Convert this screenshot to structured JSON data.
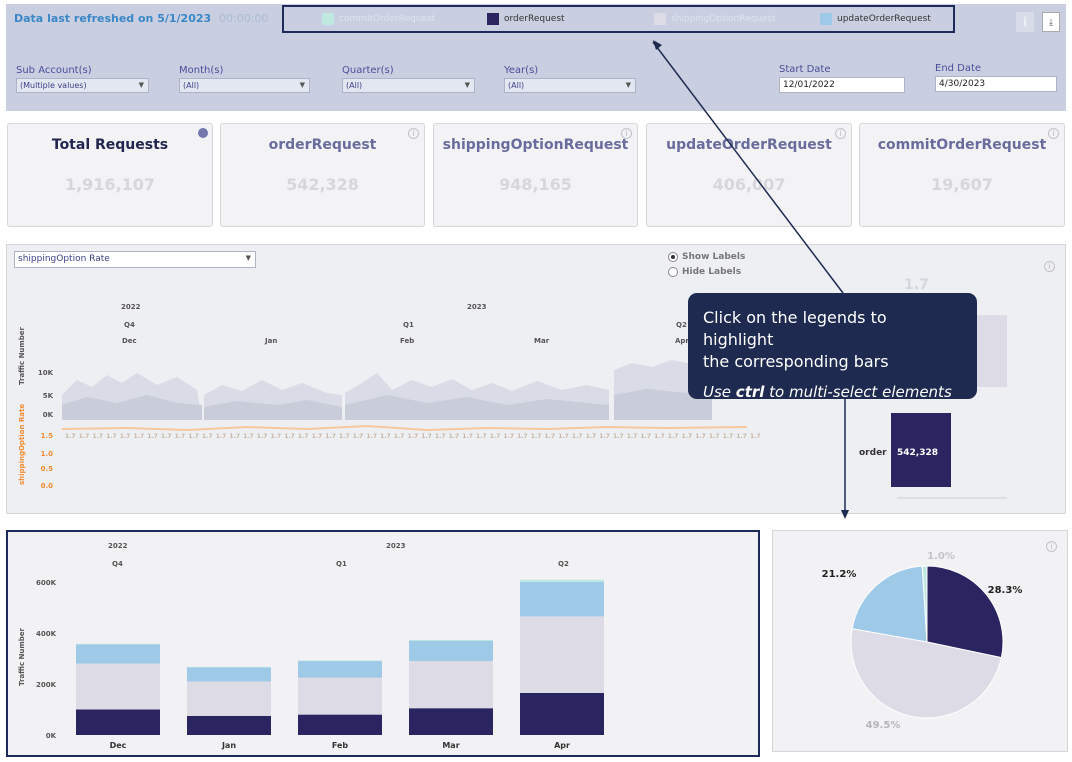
{
  "header": {
    "refresh_text": "Data last refreshed on 5/1/2023",
    "refresh_time": "00:00:00",
    "legend": [
      {
        "label": "commitOrderRequest",
        "color": "#bfe8e0",
        "faded": true
      },
      {
        "label": "orderRequest",
        "color": "#2a2560",
        "faded": false
      },
      {
        "label": "shippingOptionRequest",
        "color": "#dcdbe6",
        "faded": true
      },
      {
        "label": "updateOrderRequest",
        "color": "#9ecae8",
        "faded": false
      }
    ],
    "info_icon": "info-icon",
    "export_icon": "export-icon"
  },
  "filters": {
    "sub_account": {
      "label": "Sub Account(s)",
      "value": "(Multiple values)"
    },
    "month": {
      "label": "Month(s)",
      "value": "(All)"
    },
    "quarter": {
      "label": "Quarter(s)",
      "value": "(All)"
    },
    "year": {
      "label": "Year(s)",
      "value": "(All)"
    },
    "start_date": {
      "label": "Start Date",
      "value": "12/01/2022"
    },
    "end_date": {
      "label": "End Date",
      "value": "4/30/2023"
    }
  },
  "kpis": [
    {
      "title": "Total Requests",
      "value": "1,916,107"
    },
    {
      "title": "orderRequest",
      "value": "542,328"
    },
    {
      "title": "shippingOptionRequest",
      "value": "948,165"
    },
    {
      "title": "updateOrderRequest",
      "value": "406,007"
    },
    {
      "title": "commitOrderRequest",
      "value": "19,607"
    }
  ],
  "mid": {
    "dropdown": "shippingOption Rate",
    "show_labels": "Show Labels",
    "hide_labels": "Hide Labels",
    "years": [
      "2022",
      "2023"
    ],
    "quarters": [
      "Q4",
      "Q1",
      "Q2"
    ],
    "months": [
      "Dec",
      "Jan",
      "Feb",
      "Mar",
      "Apr"
    ],
    "traffic_axis": "Traffic Number",
    "traffic_ticks": [
      "10K",
      "5K",
      "0K"
    ],
    "rate_axis": "shippingOption Rate",
    "rate_ticks": [
      "1.5",
      "1.0",
      "0.5",
      "0.0"
    ],
    "rate_value": "1.7",
    "side_value": "1.7",
    "side_bar_label": "order",
    "side_bar_value": "542,328"
  },
  "tooltip": {
    "line1": "Click on the legends to highlight",
    "line2": "the corresponding bars",
    "line3_pre": "Use ",
    "line3_bold": "ctrl",
    "line3_post": " to multi-select elements"
  },
  "bottom": {
    "years": [
      "2022",
      "2023"
    ],
    "quarters": [
      "Q4",
      "Q1",
      "Q2"
    ],
    "ylabel": "Traffic Number",
    "yticks": [
      "600K",
      "400K",
      "200K",
      "0K"
    ]
  },
  "chart_data": [
    {
      "type": "bar",
      "stacked": true,
      "categories": [
        "Dec",
        "Jan",
        "Feb",
        "Mar",
        "Apr"
      ],
      "series": [
        {
          "name": "orderRequest",
          "color": "#2a2560",
          "values": [
            100000,
            75000,
            80000,
            105000,
            165000
          ]
        },
        {
          "name": "shippingOptionRequest",
          "color": "#dcdbe6",
          "values": [
            180000,
            135000,
            145000,
            185000,
            300000
          ]
        },
        {
          "name": "updateOrderRequest",
          "color": "#9ecae8",
          "values": [
            75000,
            55000,
            65000,
            80000,
            135000
          ]
        },
        {
          "name": "commitOrderRequest",
          "color": "#bfe8e0",
          "values": [
            3000,
            2000,
            2000,
            3000,
            9000
          ]
        }
      ],
      "ylabel": "Traffic Number",
      "ylim": [
        0,
        600000
      ]
    },
    {
      "type": "pie",
      "slices": [
        {
          "label": "28.3%",
          "value": 28.3,
          "color": "#2a2560"
        },
        {
          "label": "49.5%",
          "value": 49.5,
          "color": "#dcdbe6"
        },
        {
          "label": "21.2%",
          "value": 21.2,
          "color": "#9ecae8"
        },
        {
          "label": "1.0%",
          "value": 1.0,
          "color": "#bfe8e0"
        }
      ]
    }
  ]
}
